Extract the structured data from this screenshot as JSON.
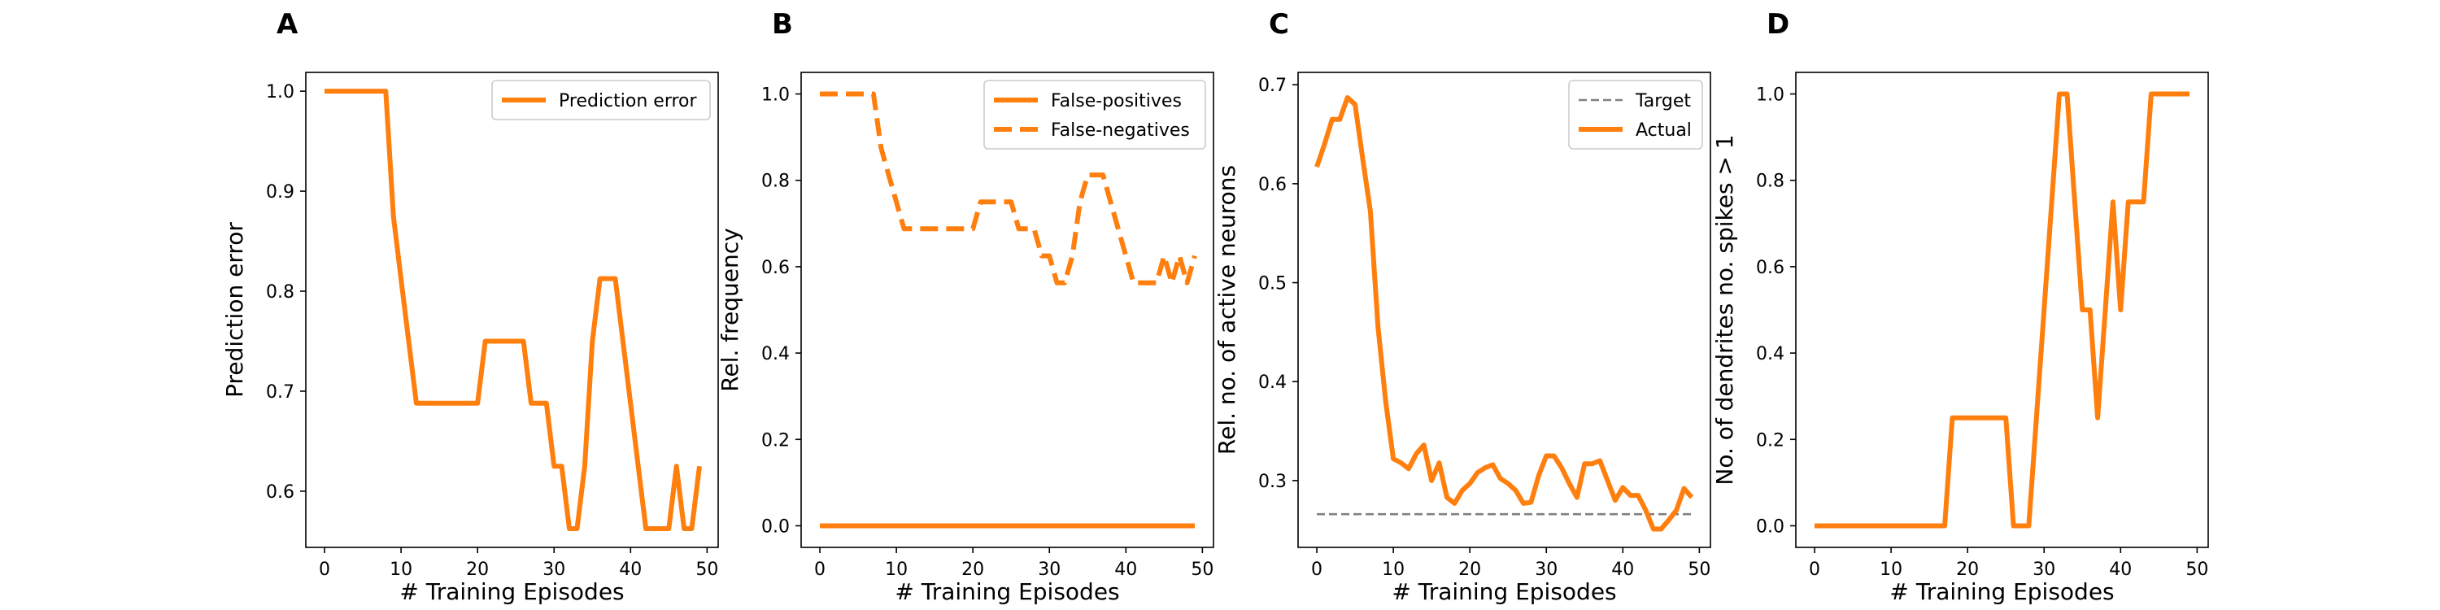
{
  "colors": {
    "orange": "#ff7f0e",
    "target": "#808080",
    "axis": "#000000"
  },
  "chart_data": [
    {
      "type": "line",
      "panel_label": "A",
      "xlabel": "# Training Episodes",
      "ylabel": "Prediction error",
      "xlim": [
        -2.45,
        51.45
      ],
      "ylim": [
        0.5438,
        1.0188
      ],
      "xticks": [
        0,
        10,
        20,
        30,
        40,
        50
      ],
      "yticks": [
        0.6,
        0.7,
        0.8,
        0.9,
        1.0
      ],
      "ytick_labels": [
        "0.6",
        "0.7",
        "0.8",
        "0.9",
        "1.0"
      ],
      "legend": "upper right",
      "grid": false,
      "series": [
        {
          "name": "Prediction error",
          "style": "solid",
          "x": [
            0,
            1,
            2,
            3,
            4,
            5,
            6,
            7,
            8,
            9,
            10,
            11,
            12,
            13,
            14,
            15,
            16,
            17,
            18,
            19,
            20,
            21,
            22,
            23,
            24,
            25,
            26,
            27,
            28,
            29,
            30,
            31,
            32,
            33,
            34,
            35,
            36,
            37,
            38,
            39,
            40,
            41,
            42,
            43,
            44,
            45,
            46,
            47,
            48,
            49
          ],
          "y": [
            1.0,
            1.0,
            1.0,
            1.0,
            1.0,
            1.0,
            1.0,
            1.0,
            1.0,
            0.875,
            0.812,
            0.75,
            0.688,
            0.688,
            0.688,
            0.688,
            0.688,
            0.688,
            0.688,
            0.688,
            0.688,
            0.75,
            0.75,
            0.75,
            0.75,
            0.75,
            0.75,
            0.688,
            0.688,
            0.688,
            0.625,
            0.625,
            0.5625,
            0.5625,
            0.625,
            0.75,
            0.8125,
            0.8125,
            0.8125,
            0.75,
            0.6875,
            0.625,
            0.5625,
            0.5625,
            0.5625,
            0.5625,
            0.625,
            0.5625,
            0.5625,
            0.625
          ]
        }
      ]
    },
    {
      "type": "line",
      "panel_label": "B",
      "xlabel": "# Training Episodes",
      "ylabel": "Rel. frequency",
      "xlim": [
        -2.45,
        51.45
      ],
      "ylim": [
        -0.05,
        1.05
      ],
      "xticks": [
        0,
        10,
        20,
        30,
        40,
        50
      ],
      "yticks": [
        0.0,
        0.2,
        0.4,
        0.6,
        0.8,
        1.0
      ],
      "ytick_labels": [
        "0.0",
        "0.2",
        "0.4",
        "0.6",
        "0.8",
        "1.0"
      ],
      "legend": "upper right",
      "grid": false,
      "series": [
        {
          "name": "False-positives",
          "style": "solid",
          "x": [
            0,
            49
          ],
          "y": [
            0.0,
            0.0
          ]
        },
        {
          "name": "False-negatives",
          "style": "dashed",
          "x": [
            0,
            1,
            2,
            3,
            4,
            5,
            6,
            7,
            8,
            9,
            10,
            11,
            12,
            13,
            14,
            15,
            16,
            17,
            18,
            19,
            20,
            21,
            22,
            23,
            24,
            25,
            26,
            27,
            28,
            29,
            30,
            31,
            32,
            33,
            34,
            35,
            36,
            37,
            38,
            39,
            40,
            41,
            42,
            43,
            44,
            45,
            46,
            47,
            48,
            49
          ],
          "y": [
            1.0,
            1.0,
            1.0,
            1.0,
            1.0,
            1.0,
            1.0,
            1.0,
            0.875,
            0.812,
            0.75,
            0.688,
            0.688,
            0.688,
            0.688,
            0.688,
            0.688,
            0.688,
            0.688,
            0.688,
            0.688,
            0.75,
            0.75,
            0.75,
            0.75,
            0.75,
            0.688,
            0.688,
            0.688,
            0.625,
            0.625,
            0.5625,
            0.5625,
            0.625,
            0.75,
            0.8125,
            0.8125,
            0.8125,
            0.75,
            0.6875,
            0.625,
            0.5625,
            0.5625,
            0.5625,
            0.5625,
            0.625,
            0.5625,
            0.625,
            0.5625,
            0.625
          ]
        }
      ]
    },
    {
      "type": "line",
      "panel_label": "C",
      "xlabel": "# Training Episodes",
      "ylabel": "Rel. no. of active neurons",
      "xlim": [
        -2.45,
        51.45
      ],
      "ylim": [
        0.2325,
        0.7125
      ],
      "xticks": [
        0,
        10,
        20,
        30,
        40,
        50
      ],
      "yticks": [
        0.3,
        0.4,
        0.5,
        0.6,
        0.7
      ],
      "ytick_labels": [
        "0.3",
        "0.4",
        "0.5",
        "0.6",
        "0.7"
      ],
      "legend": "upper right",
      "grid": false,
      "series": [
        {
          "name": "Target",
          "style": "dashed-thin",
          "x": [
            0,
            49
          ],
          "y": [
            0.266,
            0.266
          ]
        },
        {
          "name": "Actual",
          "style": "solid",
          "x": [
            0,
            1,
            2,
            3,
            4,
            5,
            6,
            7,
            8,
            9,
            10,
            11,
            12,
            13,
            14,
            15,
            16,
            17,
            18,
            19,
            20,
            21,
            22,
            23,
            24,
            25,
            26,
            27,
            28,
            29,
            30,
            31,
            32,
            33,
            34,
            35,
            36,
            37,
            38,
            39,
            40,
            41,
            42,
            43,
            44,
            45,
            46,
            47,
            48,
            49
          ],
          "y": [
            0.617,
            0.64,
            0.665,
            0.665,
            0.687,
            0.68,
            0.625,
            0.572,
            0.455,
            0.38,
            0.322,
            0.318,
            0.312,
            0.327,
            0.336,
            0.3,
            0.318,
            0.283,
            0.277,
            0.29,
            0.297,
            0.308,
            0.313,
            0.316,
            0.302,
            0.297,
            0.29,
            0.277,
            0.278,
            0.305,
            0.325,
            0.325,
            0.313,
            0.297,
            0.283,
            0.317,
            0.317,
            0.32,
            0.3,
            0.28,
            0.293,
            0.285,
            0.285,
            0.27,
            0.251,
            0.251,
            0.26,
            0.27,
            0.292,
            0.283
          ]
        }
      ]
    },
    {
      "type": "line",
      "panel_label": "D",
      "xlabel": "# Training Episodes",
      "ylabel": "No. of dendrites no. spikes > 1",
      "xlim": [
        -2.45,
        51.45
      ],
      "ylim": [
        -0.05,
        1.05
      ],
      "xticks": [
        0,
        10,
        20,
        30,
        40,
        50
      ],
      "yticks": [
        0.0,
        0.2,
        0.4,
        0.6,
        0.8,
        1.0
      ],
      "ytick_labels": [
        "0.0",
        "0.2",
        "0.4",
        "0.6",
        "0.8",
        "1.0"
      ],
      "legend": "none",
      "grid": false,
      "series": [
        {
          "name": "",
          "style": "solid",
          "x": [
            0,
            1,
            2,
            3,
            4,
            5,
            6,
            7,
            8,
            9,
            10,
            11,
            12,
            13,
            14,
            15,
            16,
            17,
            18,
            19,
            20,
            21,
            22,
            23,
            24,
            25,
            26,
            27,
            28,
            29,
            30,
            31,
            32,
            33,
            34,
            35,
            36,
            37,
            38,
            39,
            40,
            41,
            42,
            43,
            44,
            45,
            46,
            47,
            48,
            49
          ],
          "y": [
            0,
            0,
            0,
            0,
            0,
            0,
            0,
            0,
            0,
            0,
            0,
            0,
            0,
            0,
            0,
            0,
            0,
            0,
            0.25,
            0.25,
            0.25,
            0.25,
            0.25,
            0.25,
            0.25,
            0.25,
            0,
            0,
            0,
            0.25,
            0.5,
            0.75,
            1.0,
            1.0,
            0.75,
            0.5,
            0.5,
            0.25,
            0.5,
            0.75,
            0.5,
            0.75,
            0.75,
            0.75,
            1.0,
            1.0,
            1.0,
            1.0,
            1.0,
            1.0
          ]
        }
      ]
    }
  ]
}
